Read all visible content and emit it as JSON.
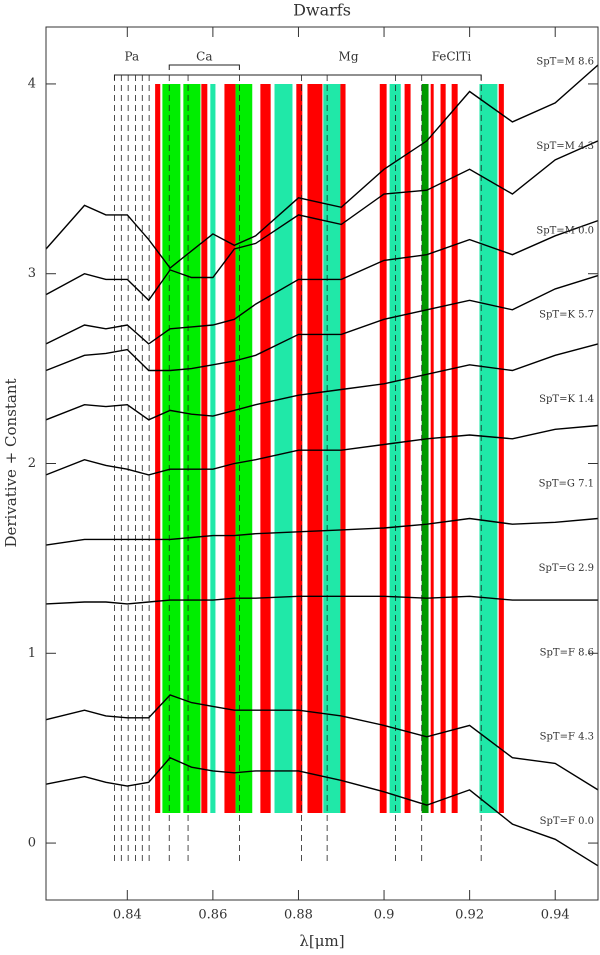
{
  "chart_data": {
    "type": "line",
    "title": "Dwarfs",
    "xlabel": "λ[μm]",
    "ylabel": "Derivative + Constant",
    "xlim": [
      0.821,
      0.95
    ],
    "ylim": [
      -0.3,
      4.3
    ],
    "xticks": [
      0.84,
      0.86,
      0.88,
      0.9,
      0.92,
      0.94
    ],
    "yticks": [
      0,
      1,
      2,
      3,
      4
    ],
    "x": [
      0.821,
      0.83,
      0.835,
      0.84,
      0.845,
      0.85,
      0.855,
      0.86,
      0.865,
      0.87,
      0.88,
      0.89,
      0.9,
      0.91,
      0.92,
      0.93,
      0.94,
      0.95
    ],
    "series": [
      {
        "name": "SpT=M 8.6",
        "color": "#000000",
        "values": [
          3.13,
          3.36,
          3.31,
          3.31,
          3.18,
          3.03,
          3.12,
          3.21,
          3.15,
          3.2,
          3.4,
          3.35,
          3.55,
          3.7,
          3.96,
          3.8,
          3.9,
          4.1
        ]
      },
      {
        "name": "SpT=M 4.3",
        "color": "#000000",
        "values": [
          2.89,
          3.0,
          2.97,
          2.97,
          2.86,
          3.02,
          2.98,
          2.98,
          3.13,
          3.16,
          3.31,
          3.26,
          3.42,
          3.44,
          3.55,
          3.42,
          3.6,
          3.7
        ]
      },
      {
        "name": "SpT=M 0.0",
        "color": "#000000",
        "values": [
          2.63,
          2.73,
          2.71,
          2.73,
          2.63,
          2.71,
          2.72,
          2.73,
          2.76,
          2.84,
          2.97,
          2.97,
          3.07,
          3.1,
          3.18,
          3.1,
          3.2,
          3.28
        ]
      },
      {
        "name": "SpT=K 5.7",
        "color": "#000000",
        "values": [
          2.49,
          2.57,
          2.58,
          2.6,
          2.49,
          2.49,
          2.5,
          2.52,
          2.54,
          2.57,
          2.68,
          2.68,
          2.76,
          2.81,
          2.86,
          2.81,
          2.92,
          2.99
        ]
      },
      {
        "name": "SpT=K 1.4",
        "color": "#000000",
        "values": [
          2.23,
          2.31,
          2.3,
          2.31,
          2.23,
          2.28,
          2.26,
          2.25,
          2.28,
          2.31,
          2.36,
          2.39,
          2.42,
          2.47,
          2.52,
          2.49,
          2.57,
          2.63
        ]
      },
      {
        "name": "SpT=G 7.1",
        "color": "#000000",
        "values": [
          1.94,
          2.02,
          1.99,
          1.97,
          1.94,
          1.97,
          1.97,
          1.97,
          2.0,
          2.02,
          2.07,
          2.07,
          2.1,
          2.13,
          2.15,
          2.13,
          2.18,
          2.2
        ]
      },
      {
        "name": "SpT=G 2.9",
        "color": "#000000",
        "values": [
          1.57,
          1.6,
          1.6,
          1.6,
          1.6,
          1.6,
          1.61,
          1.62,
          1.62,
          1.63,
          1.64,
          1.65,
          1.66,
          1.68,
          1.71,
          1.68,
          1.69,
          1.71
        ]
      },
      {
        "name": "SpT=F 8.6",
        "color": "#000000",
        "values": [
          1.26,
          1.27,
          1.27,
          1.26,
          1.27,
          1.28,
          1.28,
          1.28,
          1.29,
          1.29,
          1.3,
          1.3,
          1.3,
          1.29,
          1.3,
          1.28,
          1.28,
          1.28
        ]
      },
      {
        "name": "SpT=F 4.3",
        "color": "#000000",
        "values": [
          0.65,
          0.7,
          0.67,
          0.66,
          0.66,
          0.78,
          0.74,
          0.72,
          0.7,
          0.7,
          0.7,
          0.67,
          0.62,
          0.56,
          0.62,
          0.45,
          0.42,
          0.28
        ]
      },
      {
        "name": "SpT=F 0.0",
        "color": "#000000",
        "values": [
          0.31,
          0.35,
          0.32,
          0.3,
          0.32,
          0.45,
          0.4,
          0.38,
          0.37,
          0.38,
          0.38,
          0.33,
          0.27,
          0.2,
          0.28,
          0.1,
          0.02,
          -0.12
        ]
      }
    ],
    "bands": [
      {
        "x": [
          0.8465,
          0.8477
        ],
        "color": "#ff0000"
      },
      {
        "x": [
          0.8482,
          0.8524
        ],
        "color": "#00ee00"
      },
      {
        "x": [
          0.8531,
          0.8571
        ],
        "color": "#00ee00"
      },
      {
        "x": [
          0.8573,
          0.8587
        ],
        "color": "#ff0000"
      },
      {
        "x": [
          0.8594,
          0.8606
        ],
        "color": "#20e8a8"
      },
      {
        "x": [
          0.8627,
          0.8653
        ],
        "color": "#ff0000"
      },
      {
        "x": [
          0.8653,
          0.8692
        ],
        "color": "#00ee00"
      },
      {
        "x": [
          0.8711,
          0.8735
        ],
        "color": "#ff0000"
      },
      {
        "x": [
          0.8744,
          0.8786
        ],
        "color": "#20e8a8"
      },
      {
        "x": [
          0.8795,
          0.8809
        ],
        "color": "#ff0000"
      },
      {
        "x": [
          0.8821,
          0.8856
        ],
        "color": "#ff0000"
      },
      {
        "x": [
          0.8858,
          0.8898
        ],
        "color": "#20e8a8"
      },
      {
        "x": [
          0.8898,
          0.891
        ],
        "color": "#ff0000"
      },
      {
        "x": [
          0.899,
          0.9006
        ],
        "color": "#ff0000"
      },
      {
        "x": [
          0.9013,
          0.9039
        ],
        "color": "#20e8a8"
      },
      {
        "x": [
          0.9048,
          0.9062
        ],
        "color": "#ff0000"
      },
      {
        "x": [
          0.9088,
          0.9104
        ],
        "color": "#009900"
      },
      {
        "x": [
          0.9109,
          0.9116
        ],
        "color": "#ff0000"
      },
      {
        "x": [
          0.9132,
          0.9144
        ],
        "color": "#ff0000"
      },
      {
        "x": [
          0.9158,
          0.9172
        ],
        "color": "#ff0000"
      },
      {
        "x": [
          0.9223,
          0.9265
        ],
        "color": "#20e8a8"
      },
      {
        "x": [
          0.9268,
          0.928
        ],
        "color": "#ff0000"
      }
    ],
    "line_groups": [
      {
        "label": "Pa",
        "lines": [
          0.837,
          0.8386,
          0.8402,
          0.8419,
          0.8435,
          0.8451
        ]
      },
      {
        "label": "Ca",
        "lines": [
          0.8498,
          0.8542,
          0.8662
        ]
      },
      {
        "label": "Mg",
        "lines": [
          0.8807,
          0.8867,
          0.9027
        ]
      },
      {
        "label": "FeClTi",
        "lines": [
          0.9088,
          0.9227
        ]
      }
    ]
  }
}
